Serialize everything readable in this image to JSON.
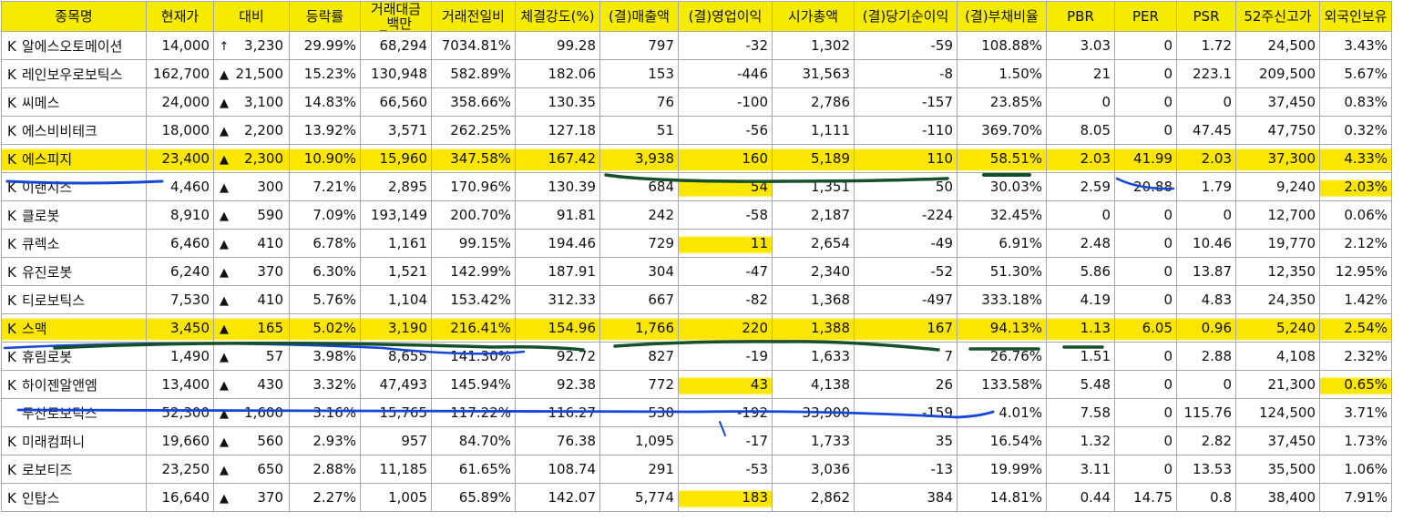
{
  "headers": [
    "종목명",
    "현재가",
    "대비",
    "등락률",
    "거래대금_백만",
    "거래전일비",
    "체결강도(%)",
    "(결)매출액",
    "(결)영업이익",
    "시가총액",
    "(결)당기순이익",
    "(결)부채비율",
    "PBR",
    "PER",
    "PSR",
    "52주신고가",
    "외국인보유"
  ],
  "header_lines": {
    "h0": "종목명",
    "h1": "현재가",
    "h2": "대비",
    "h3": "등락률",
    "h4a": "거래대금",
    "h4b": "_백만",
    "h5": "거래전일비",
    "h6": "체결강도(%)",
    "h7": "(결)매출액",
    "h8": "(결)영업이익",
    "h9": "시가총액",
    "h10": "(결)당기순이익",
    "h11": "(결)부채비율",
    "h12": "PBR",
    "h13": "PER",
    "h14": "PSR",
    "h15": "52주신고가",
    "h16": "외국인보유"
  },
  "rows": [
    {
      "mark": "K",
      "name": "알에스오토메이션",
      "price": "14,000",
      "arrow": "↑",
      "change": "3,230",
      "rate": "29.99%",
      "volume": "68,294",
      "prevratio": "7034.81%",
      "strength": "99.28",
      "sales": "797",
      "op": "-32",
      "mcap": "1,302",
      "net": "-59",
      "debt": "108.88%",
      "pbr": "3.03",
      "per": "0",
      "psr": "1.72",
      "high52": "24,500",
      "foreign": "3.43%"
    },
    {
      "mark": "K",
      "name": "레인보우로보틱스",
      "price": "162,700",
      "arrow": "▲",
      "change": "21,500",
      "rate": "15.23%",
      "volume": "130,948",
      "prevratio": "582.89%",
      "strength": "182.06",
      "sales": "153",
      "op": "-446",
      "mcap": "31,563",
      "net": "-8",
      "debt": "1.50%",
      "pbr": "21",
      "per": "0",
      "psr": "223.1",
      "high52": "209,500",
      "foreign": "5.67%"
    },
    {
      "mark": "K",
      "name": "씨메스",
      "price": "24,000",
      "arrow": "▲",
      "change": "3,100",
      "rate": "14.83%",
      "volume": "66,560",
      "prevratio": "358.66%",
      "strength": "130.35",
      "sales": "76",
      "op": "-100",
      "mcap": "2,786",
      "net": "-157",
      "debt": "23.85%",
      "pbr": "0",
      "per": "0",
      "psr": "0",
      "high52": "37,450",
      "foreign": "0.83%"
    },
    {
      "mark": "K",
      "name": "에스비비테크",
      "price": "18,000",
      "arrow": "▲",
      "change": "2,200",
      "rate": "13.92%",
      "volume": "3,571",
      "prevratio": "262.25%",
      "strength": "127.18",
      "sales": "51",
      "op": "-56",
      "mcap": "1,111",
      "net": "-110",
      "debt": "369.70%",
      "pbr": "8.05",
      "per": "0",
      "psr": "47.45",
      "high52": "47,750",
      "foreign": "0.32%"
    },
    {
      "mark": "K",
      "name": "에스피지",
      "price": "23,400",
      "arrow": "▲",
      "change": "2,300",
      "rate": "10.90%",
      "volume": "15,960",
      "prevratio": "347.58%",
      "strength": "167.42",
      "sales": "3,938",
      "op": "160",
      "mcap": "5,189",
      "net": "110",
      "debt": "58.51%",
      "pbr": "2.03",
      "per": "41.99",
      "psr": "2.03",
      "high52": "37,300",
      "foreign": "4.33%"
    },
    {
      "mark": "K",
      "name": "이랜시스",
      "price": "4,460",
      "arrow": "▲",
      "change": "300",
      "rate": "7.21%",
      "volume": "2,895",
      "prevratio": "170.96%",
      "strength": "130.39",
      "sales": "684",
      "op": "54",
      "mcap": "1,351",
      "net": "50",
      "debt": "30.03%",
      "pbr": "2.59",
      "per": "20.88",
      "psr": "1.79",
      "high52": "9,240",
      "foreign": "2.03%"
    },
    {
      "mark": "K",
      "name": "클로봇",
      "price": "8,910",
      "arrow": "▲",
      "change": "590",
      "rate": "7.09%",
      "volume": "193,149",
      "prevratio": "200.70%",
      "strength": "91.81",
      "sales": "242",
      "op": "-58",
      "mcap": "2,187",
      "net": "-224",
      "debt": "32.45%",
      "pbr": "0",
      "per": "0",
      "psr": "0",
      "high52": "12,700",
      "foreign": "0.06%"
    },
    {
      "mark": "K",
      "name": "큐렉소",
      "price": "6,460",
      "arrow": "▲",
      "change": "410",
      "rate": "6.78%",
      "volume": "1,161",
      "prevratio": "99.15%",
      "strength": "194.46",
      "sales": "729",
      "op": "11",
      "mcap": "2,654",
      "net": "-49",
      "debt": "6.91%",
      "pbr": "2.48",
      "per": "0",
      "psr": "10.46",
      "high52": "19,770",
      "foreign": "2.12%"
    },
    {
      "mark": "K",
      "name": "유진로봇",
      "price": "6,240",
      "arrow": "▲",
      "change": "370",
      "rate": "6.30%",
      "volume": "1,521",
      "prevratio": "142.99%",
      "strength": "187.91",
      "sales": "304",
      "op": "-47",
      "mcap": "2,340",
      "net": "-52",
      "debt": "51.30%",
      "pbr": "5.86",
      "per": "0",
      "psr": "13.87",
      "high52": "12,350",
      "foreign": "12.95%"
    },
    {
      "mark": "K",
      "name": "티로보틱스",
      "price": "7,530",
      "arrow": "▲",
      "change": "410",
      "rate": "5.76%",
      "volume": "1,104",
      "prevratio": "153.42%",
      "strength": "312.33",
      "sales": "667",
      "op": "-82",
      "mcap": "1,368",
      "net": "-497",
      "debt": "333.18%",
      "pbr": "4.19",
      "per": "0",
      "psr": "4.83",
      "high52": "24,350",
      "foreign": "1.42%"
    },
    {
      "mark": "K",
      "name": "스맥",
      "price": "3,450",
      "arrow": "▲",
      "change": "165",
      "rate": "5.02%",
      "volume": "3,190",
      "prevratio": "216.41%",
      "strength": "154.96",
      "sales": "1,766",
      "op": "220",
      "mcap": "1,388",
      "net": "167",
      "debt": "94.13%",
      "pbr": "1.13",
      "per": "6.05",
      "psr": "0.96",
      "high52": "5,240",
      "foreign": "2.54%"
    },
    {
      "mark": "K",
      "name": "휴림로봇",
      "price": "1,490",
      "arrow": "▲",
      "change": "57",
      "rate": "3.98%",
      "volume": "8,655",
      "prevratio": "141.30%",
      "strength": "92.72",
      "sales": "827",
      "op": "-19",
      "mcap": "1,633",
      "net": "7",
      "debt": "26.76%",
      "pbr": "1.51",
      "per": "0",
      "psr": "2.88",
      "high52": "4,108",
      "foreign": "2.32%"
    },
    {
      "mark": "K",
      "name": "하이젠알앤엠",
      "price": "13,400",
      "arrow": "▲",
      "change": "430",
      "rate": "3.32%",
      "volume": "47,493",
      "prevratio": "145.94%",
      "strength": "92.38",
      "sales": "772",
      "op": "43",
      "mcap": "4,138",
      "net": "26",
      "debt": "133.58%",
      "pbr": "5.48",
      "per": "0",
      "psr": "0",
      "high52": "21,300",
      "foreign": "0.65%"
    },
    {
      "mark": "",
      "name": "두산로보틱스",
      "price": "52,300",
      "arrow": "▲",
      "change": "1,600",
      "rate": "3.16%",
      "volume": "15,765",
      "prevratio": "117.22%",
      "strength": "116.27",
      "sales": "530",
      "op": "-192",
      "mcap": "33,900",
      "net": "-159",
      "debt": "4.01%",
      "pbr": "7.58",
      "per": "0",
      "psr": "115.76",
      "high52": "124,500",
      "foreign": "3.71%"
    },
    {
      "mark": "K",
      "name": "미래컴퍼니",
      "price": "19,660",
      "arrow": "▲",
      "change": "560",
      "rate": "2.93%",
      "volume": "957",
      "prevratio": "84.70%",
      "strength": "76.38",
      "sales": "1,095",
      "op": "-17",
      "mcap": "1,733",
      "net": "35",
      "debt": "16.54%",
      "pbr": "1.32",
      "per": "0",
      "psr": "2.82",
      "high52": "37,450",
      "foreign": "1.73%"
    },
    {
      "mark": "K",
      "name": "로보티즈",
      "price": "23,250",
      "arrow": "▲",
      "change": "650",
      "rate": "2.88%",
      "volume": "11,185",
      "prevratio": "61.65%",
      "strength": "108.74",
      "sales": "291",
      "op": "-53",
      "mcap": "3,036",
      "net": "-13",
      "debt": "19.99%",
      "pbr": "3.11",
      "per": "0",
      "psr": "13.53",
      "high52": "35,500",
      "foreign": "1.06%"
    },
    {
      "mark": "K",
      "name": "인탑스",
      "price": "16,640",
      "arrow": "▲",
      "change": "370",
      "rate": "2.27%",
      "volume": "1,005",
      "prevratio": "65.89%",
      "strength": "142.07",
      "sales": "5,774",
      "op": "183",
      "mcap": "2,862",
      "net": "384",
      "debt": "14.81%",
      "pbr": "0.44",
      "per": "14.75",
      "psr": "0.8",
      "high52": "38,400",
      "foreign": "7.91%"
    }
  ],
  "highlight_color": "#fbe600",
  "pen_colors": {
    "green": "#14502a",
    "blue": "#1446d8"
  }
}
